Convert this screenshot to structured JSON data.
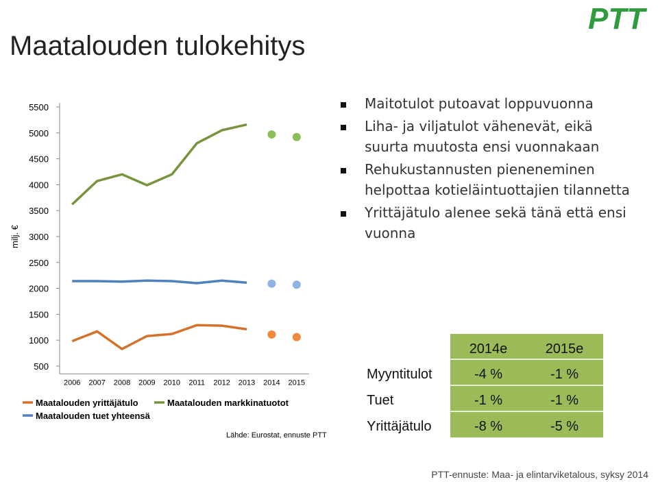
{
  "title": "Maatalouden tulokehitys",
  "logo": "PTT",
  "bullets": [
    [
      "Maitotulot putoavat loppuvuonna"
    ],
    [
      "Liha- ja viljatulot vähenevät, eikä",
      "suurta muutosta ensi vuonnakaan"
    ],
    [
      "Rehukustannusten pieneneminen",
      "helpottaa kotieläintuottajien tilannetta"
    ],
    [
      "Yrittäjätulo alenee sekä tänä että ensi",
      "vuonna"
    ]
  ],
  "table": {
    "columns": [
      "2014e",
      "2015e"
    ],
    "rows": [
      {
        "label": "Myyntitulot",
        "cells": [
          "-4 %",
          "-1 %"
        ]
      },
      {
        "label": "Tuet",
        "cells": [
          "-1 %",
          "-1 %"
        ]
      },
      {
        "label": "Yrittäjätulo",
        "cells": [
          "-8 %",
          "-5 %"
        ]
      }
    ],
    "color": "#9bbb59"
  },
  "footer": "PTT-ennuste: Maa- ja elintarviketalous, syksy 2014",
  "chart_data": {
    "type": "line",
    "y_label": "milj. €",
    "source": "Lähde: Eurostat, ennuste PTT",
    "x": [
      2006,
      2007,
      2008,
      2009,
      2010,
      2011,
      2012,
      2013,
      2014,
      2015
    ],
    "xlim": [
      2005.5,
      2015.5
    ],
    "xticks": [
      2006,
      2007,
      2008,
      2009,
      2010,
      2011,
      2012,
      2013,
      2014,
      2015
    ],
    "ylim": [
      350,
      5500
    ],
    "yticks": [
      500,
      1000,
      1500,
      2000,
      2500,
      3000,
      3500,
      4000,
      4500,
      5000,
      5500
    ],
    "grid": false,
    "series": [
      {
        "name": "Maatalouden yrittäjätulo",
        "color": "#d4712a",
        "forecast_color": "#f0883e",
        "values": [
          980,
          1170,
          830,
          1080,
          1120,
          1290,
          1280,
          1210,
          null,
          null
        ],
        "forecast": [
          null,
          null,
          null,
          null,
          null,
          null,
          null,
          null,
          1110,
          1060
        ]
      },
      {
        "name": "Maatalouden markkinatuotot",
        "color": "#77933c",
        "forecast_color": "#8fbc5a",
        "values": [
          3620,
          4070,
          4200,
          3990,
          4200,
          4800,
          5050,
          5160,
          null,
          null
        ],
        "forecast": [
          null,
          null,
          null,
          null,
          null,
          null,
          null,
          null,
          4970,
          4920
        ]
      },
      {
        "name": "Maatalouden tuet yhteensä",
        "color": "#4f81bd",
        "forecast_color": "#8db3e2",
        "values": [
          2140,
          2140,
          2130,
          2150,
          2140,
          2100,
          2150,
          2110,
          null,
          null
        ],
        "forecast": [
          null,
          null,
          null,
          null,
          null,
          null,
          null,
          null,
          2090,
          2070
        ]
      }
    ]
  }
}
